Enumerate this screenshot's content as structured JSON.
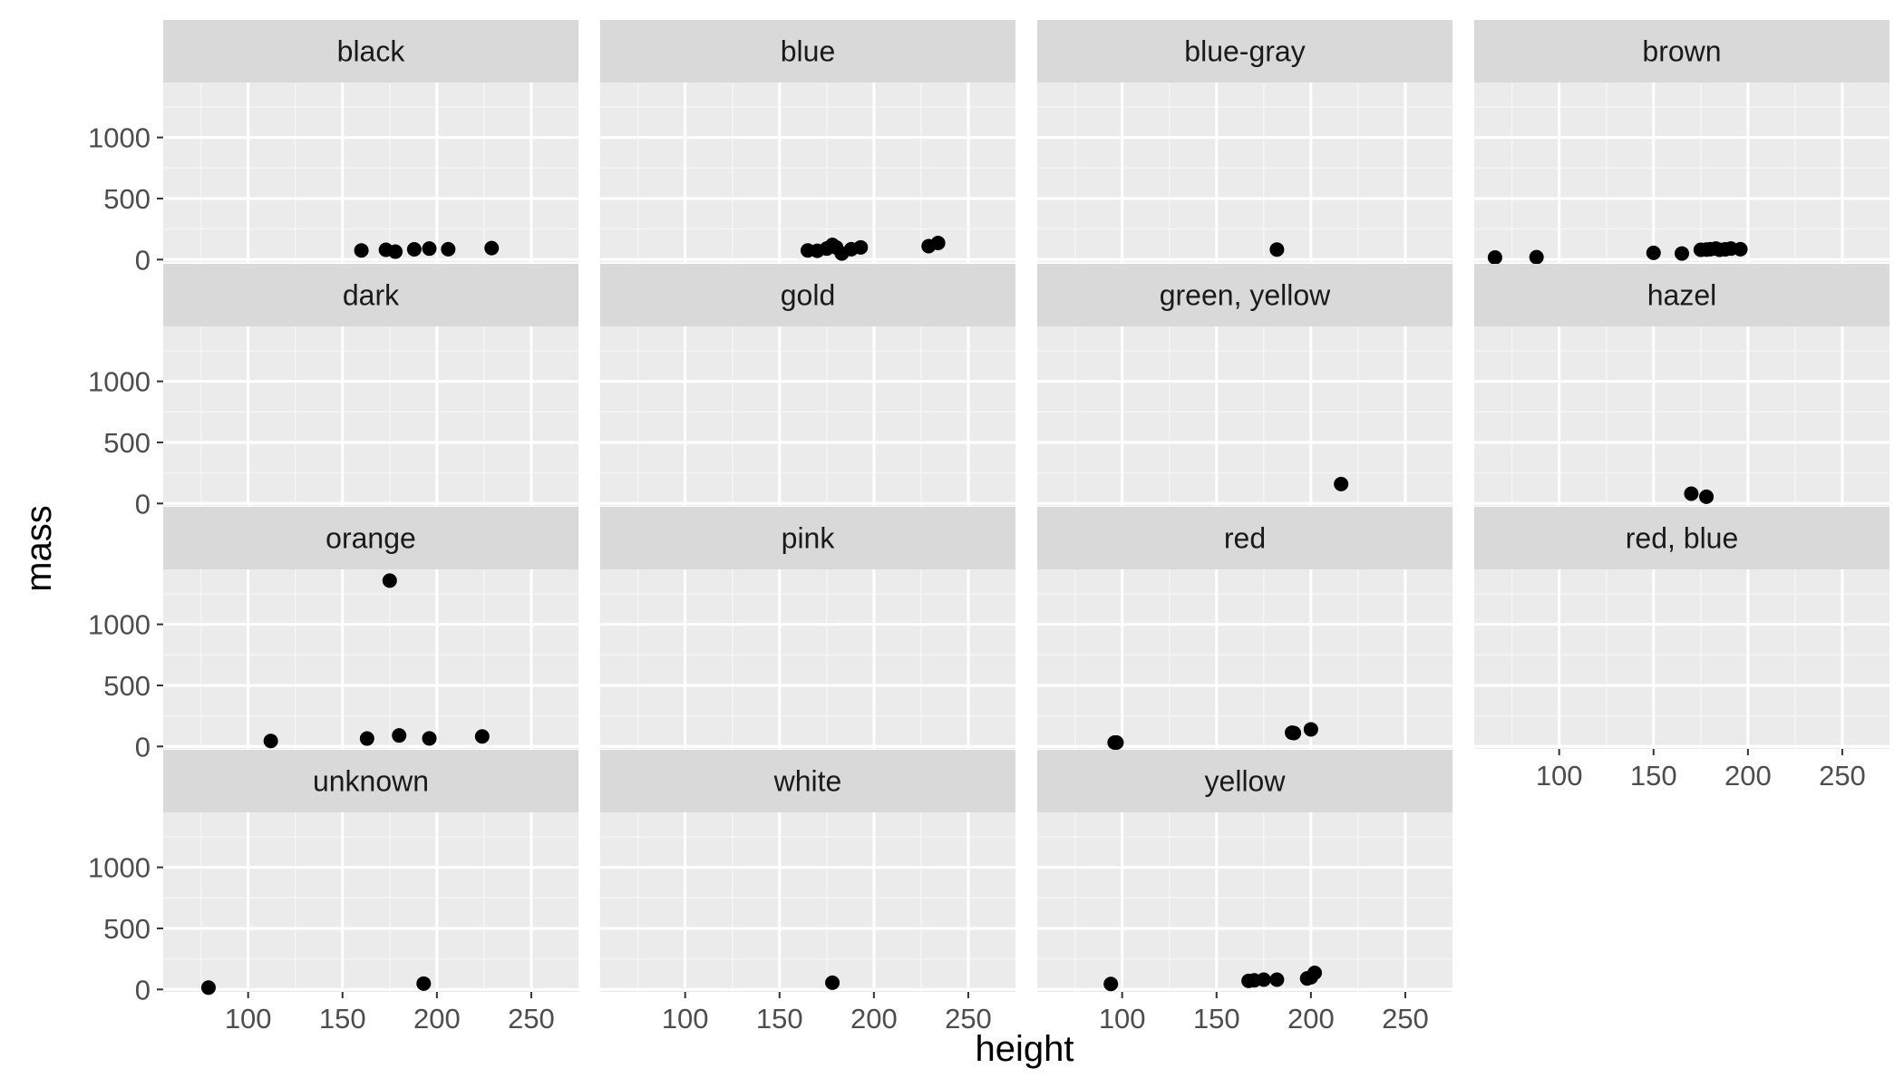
{
  "chart_data": {
    "type": "scatter",
    "layout": "facet_wrap",
    "ncol": 4,
    "xlabel": "height",
    "ylabel": "mass",
    "xlim": [
      55,
      275
    ],
    "ylim": [
      -20,
      1450
    ],
    "x_ticks": [
      100,
      150,
      200,
      250
    ],
    "y_ticks": [
      0,
      500,
      1000
    ],
    "x_ticks_label": [
      "100",
      "150",
      "200",
      "250"
    ],
    "y_ticks_label": [
      "0",
      "500",
      "1000"
    ],
    "grid": true,
    "colors": {
      "panel_bg": "#ebebeb",
      "strip_bg": "#d9d9d9",
      "grid_major": "#ffffff",
      "grid_minor": "#f5f5f5",
      "point": "#000000",
      "tick": "#333333"
    },
    "facets": [
      {
        "label": "black",
        "points": [
          [
            160,
            75
          ],
          [
            173,
            80
          ],
          [
            178,
            65
          ],
          [
            188,
            84
          ],
          [
            196,
            90
          ],
          [
            206,
            85
          ],
          [
            229,
            94
          ]
        ]
      },
      {
        "label": "blue",
        "points": [
          [
            165,
            75
          ],
          [
            170,
            72
          ],
          [
            175,
            90
          ],
          [
            178,
            120
          ],
          [
            180,
            100
          ],
          [
            183,
            50
          ],
          [
            188,
            85
          ],
          [
            193,
            100
          ],
          [
            229,
            110
          ],
          [
            234,
            136
          ]
        ]
      },
      {
        "label": "blue-gray",
        "points": [
          [
            182,
            82
          ]
        ]
      },
      {
        "label": "brown",
        "points": [
          [
            66,
            17
          ],
          [
            88,
            20
          ],
          [
            150,
            55
          ],
          [
            165,
            50
          ],
          [
            175,
            80
          ],
          [
            178,
            82
          ],
          [
            180,
            85
          ],
          [
            183,
            90
          ],
          [
            185,
            80
          ],
          [
            188,
            84
          ],
          [
            191,
            90
          ],
          [
            196,
            85
          ]
        ]
      },
      {
        "label": "dark",
        "points": []
      },
      {
        "label": "gold",
        "points": []
      },
      {
        "label": "green, yellow",
        "points": [
          [
            216,
            159
          ]
        ]
      },
      {
        "label": "hazel",
        "points": [
          [
            170,
            80
          ],
          [
            178,
            55
          ]
        ]
      },
      {
        "label": "orange",
        "points": [
          [
            112,
            45
          ],
          [
            163,
            65
          ],
          [
            175,
            1358
          ],
          [
            180,
            90
          ],
          [
            196,
            66
          ],
          [
            224,
            82
          ]
        ]
      },
      {
        "label": "pink",
        "points": []
      },
      {
        "label": "red",
        "points": [
          [
            96,
            32
          ],
          [
            97,
            32
          ],
          [
            190,
            113
          ],
          [
            191,
            110
          ],
          [
            200,
            140
          ]
        ]
      },
      {
        "label": "red, blue",
        "points": []
      },
      {
        "label": "unknown",
        "points": [
          [
            79,
            15
          ],
          [
            193,
            48
          ]
        ]
      },
      {
        "label": "white",
        "points": [
          [
            178,
            55
          ]
        ]
      },
      {
        "label": "yellow",
        "points": [
          [
            94,
            45
          ],
          [
            167,
            70
          ],
          [
            170,
            75
          ],
          [
            175,
            80
          ],
          [
            182,
            80
          ],
          [
            198,
            90
          ],
          [
            200,
            100
          ],
          [
            202,
            136
          ]
        ]
      }
    ]
  }
}
